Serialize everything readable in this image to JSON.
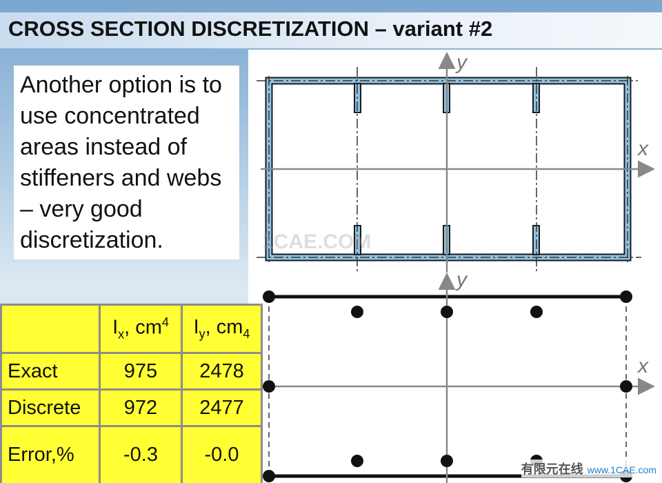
{
  "header": {
    "title": "CROSS SECTION DISCRETIZATION – variant #2"
  },
  "text": "Another option is to use concentrated areas instead of stiffeners and webs – very good discretization.",
  "table": {
    "columns": [
      {
        "symbol": "I",
        "sub": "x",
        "unit": ", cm",
        "sup": "4"
      },
      {
        "symbol": "I",
        "sub": "y",
        "unit": ", cm",
        "unit_sub": "4"
      }
    ],
    "rows": [
      [
        "Exact",
        "975",
        "2478"
      ],
      [
        "Discrete",
        "972",
        "2477"
      ],
      [
        "Error,%",
        "-0.3",
        "-0.0"
      ]
    ]
  },
  "diagrams": [
    {
      "x_label": "x",
      "y_label": "y"
    },
    {
      "x_label": "x",
      "y_label": "y"
    }
  ],
  "watermark": "1CAE.COM",
  "footer": {
    "brand": "有限元在线",
    "url": "www.1CAE.com"
  }
}
